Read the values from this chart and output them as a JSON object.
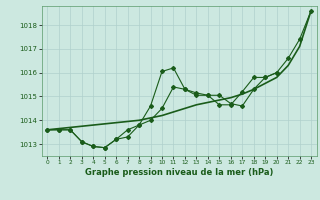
{
  "bg_color": "#cce8e0",
  "grid_color": "#b0d0cc",
  "line_color": "#1a5c1a",
  "x": [
    0,
    1,
    2,
    3,
    4,
    5,
    6,
    7,
    8,
    9,
    10,
    11,
    12,
    13,
    14,
    15,
    16,
    17,
    18,
    19,
    20,
    21,
    22,
    23
  ],
  "line1": [
    1013.6,
    1013.6,
    1013.6,
    1013.1,
    1012.9,
    1012.85,
    1013.2,
    1013.6,
    1013.8,
    1014.0,
    1014.5,
    1015.4,
    1015.3,
    1015.15,
    1015.05,
    1015.05,
    1014.7,
    1014.6,
    1015.3,
    1015.8,
    1016.0,
    1016.6,
    1017.4,
    1018.6
  ],
  "line2_x": [
    0,
    1,
    2,
    3,
    4,
    5,
    6,
    7,
    8,
    9,
    10,
    11,
    12,
    13,
    14,
    15,
    16,
    17,
    18,
    19,
    20
  ],
  "line2": [
    1013.6,
    1013.6,
    1013.6,
    1013.1,
    1012.9,
    1012.85,
    1013.2,
    1013.3,
    1013.8,
    1014.6,
    1016.05,
    1016.2,
    1015.3,
    1015.05,
    1015.05,
    1014.65,
    1014.65,
    1015.2,
    1015.8,
    1015.8,
    1016.0
  ],
  "line3": [
    1013.6,
    1013.65,
    1013.7,
    1013.75,
    1013.8,
    1013.85,
    1013.9,
    1013.95,
    1014.0,
    1014.1,
    1014.2,
    1014.35,
    1014.5,
    1014.65,
    1014.75,
    1014.85,
    1014.95,
    1015.1,
    1015.3,
    1015.55,
    1015.8,
    1016.3,
    1017.1,
    1018.6
  ],
  "xlabel": "Graphe pression niveau de la mer (hPa)",
  "yticks": [
    1013,
    1014,
    1015,
    1016,
    1017,
    1018
  ],
  "ylim": [
    1012.5,
    1018.8
  ],
  "xlim": [
    -0.5,
    23.5
  ]
}
